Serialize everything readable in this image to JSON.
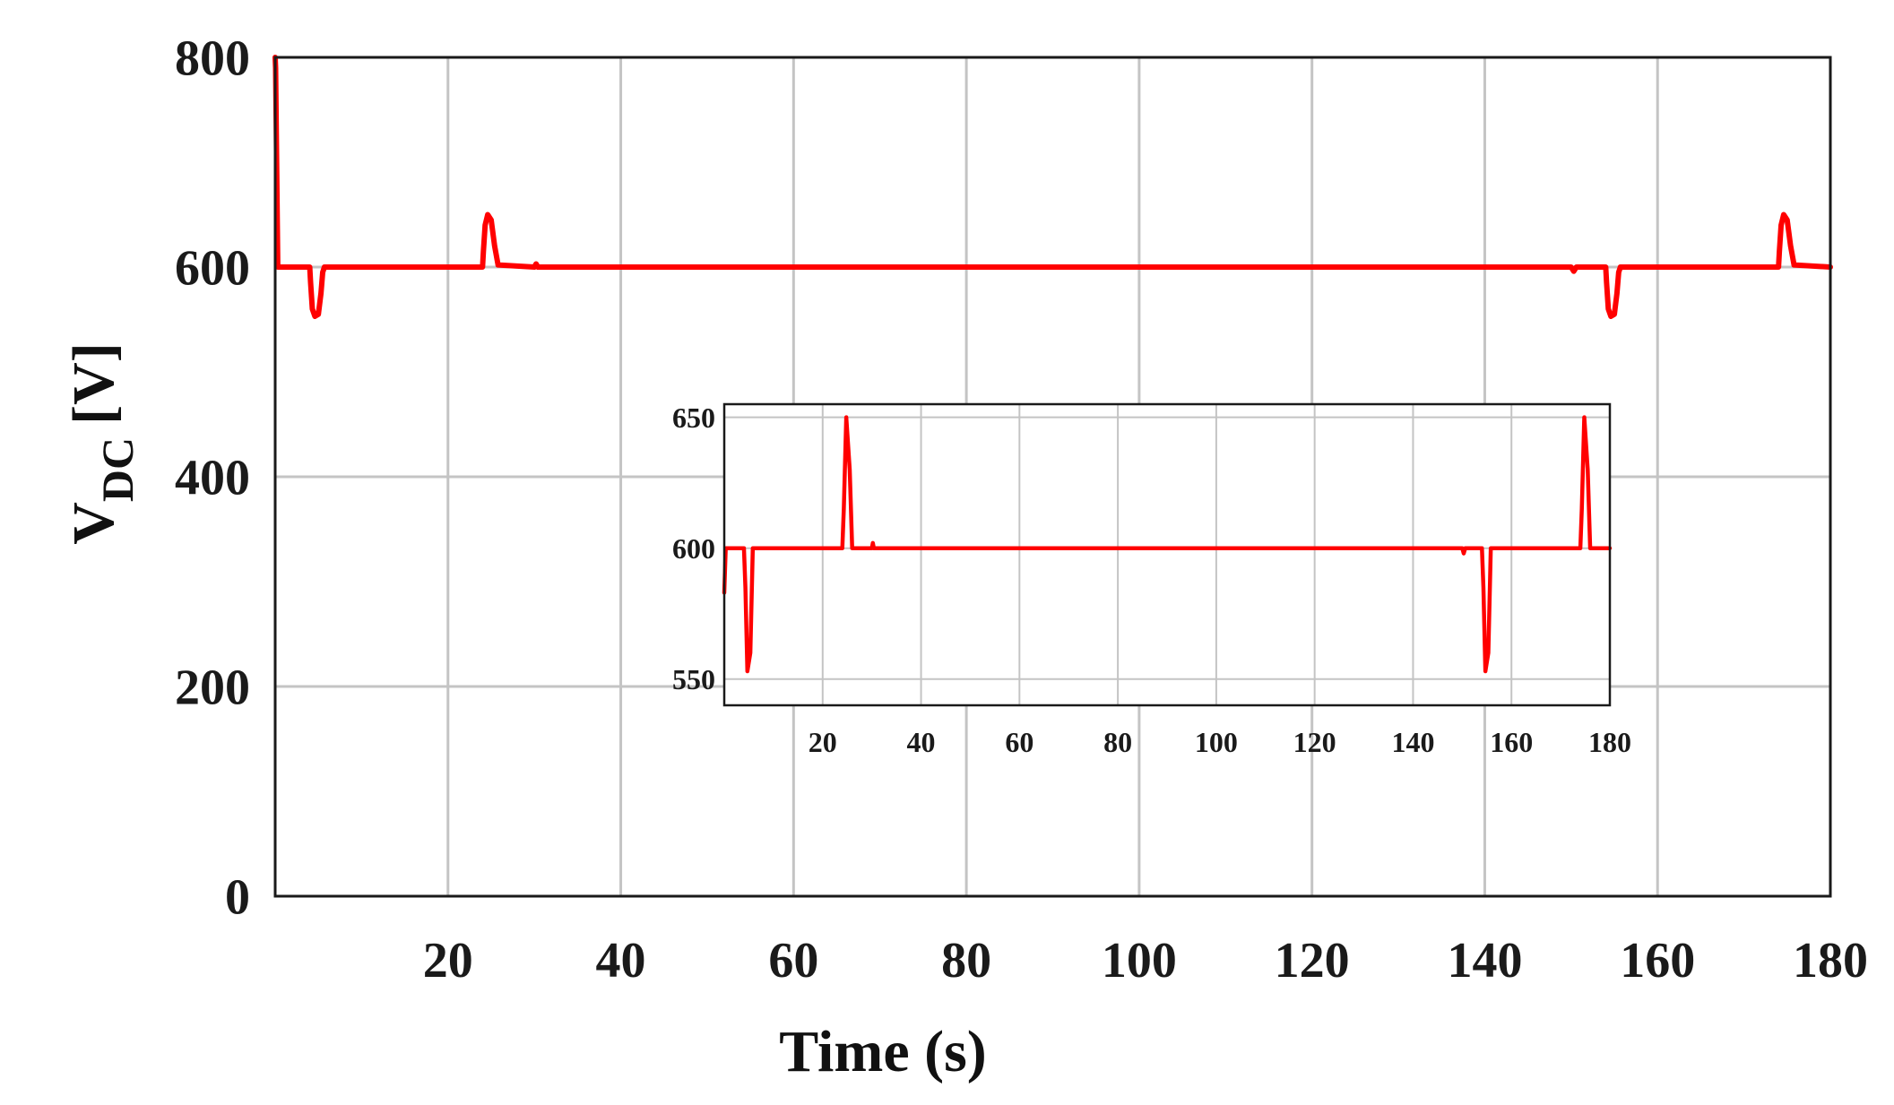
{
  "chart_data": [
    {
      "type": "line",
      "xlabel": "Time (s)",
      "ylabel_main": "V",
      "ylabel_sub": "DC",
      "ylabel_unit": "[V]",
      "xlim": [
        0,
        180
      ],
      "ylim": [
        0,
        800
      ],
      "xticks": [
        20,
        40,
        60,
        80,
        100,
        120,
        140,
        160,
        180
      ],
      "yticks": [
        0,
        200,
        400,
        600,
        800
      ],
      "grid": true,
      "series": [
        {
          "color": "#ff0000",
          "x": [
            0,
            0.05,
            0.3,
            4.0,
            4.1,
            4.3,
            4.6,
            5.0,
            5.3,
            5.5,
            5.7,
            24.0,
            24.1,
            24.3,
            24.6,
            25.0,
            25.4,
            25.8,
            30.0,
            30.2,
            30.4,
            150.0,
            150.3,
            150.6,
            154.0,
            154.1,
            154.3,
            154.6,
            155.0,
            155.3,
            155.5,
            155.7,
            174.0,
            174.1,
            174.3,
            174.6,
            175.0,
            175.4,
            175.8,
            180.0
          ],
          "y": [
            800,
            790,
            600,
            600,
            585,
            560,
            553,
            555,
            575,
            595,
            600,
            600,
            615,
            640,
            650,
            645,
            620,
            602,
            600,
            603,
            600,
            600,
            596,
            600,
            600,
            585,
            560,
            553,
            555,
            575,
            595,
            600,
            600,
            615,
            640,
            650,
            645,
            620,
            602,
            600
          ]
        }
      ]
    },
    {
      "type": "line",
      "inset": true,
      "xlim": [
        0,
        180
      ],
      "ylim": [
        540,
        655
      ],
      "xticks": [
        20,
        40,
        60,
        80,
        100,
        120,
        140,
        160,
        180
      ],
      "yticks": [
        550,
        600,
        650
      ],
      "grid": true,
      "series": [
        {
          "color": "#ff0000",
          "x": [
            0,
            0.3,
            0.6,
            1.0,
            4.0,
            4.3,
            4.7,
            5.3,
            5.8,
            24.0,
            24.3,
            24.8,
            25.5,
            26.0,
            30.0,
            30.2,
            30.4,
            150.0,
            150.3,
            150.6,
            154.0,
            154.3,
            154.7,
            155.3,
            155.8,
            174.0,
            174.3,
            174.8,
            175.5,
            176.0,
            180.0
          ],
          "y": [
            583,
            600,
            600,
            600,
            600,
            585,
            553,
            560,
            600,
            600,
            615,
            650,
            630,
            600,
            600,
            602,
            600,
            600,
            598,
            600,
            600,
            585,
            553,
            560,
            600,
            600,
            615,
            650,
            630,
            600,
            600
          ]
        }
      ]
    }
  ]
}
